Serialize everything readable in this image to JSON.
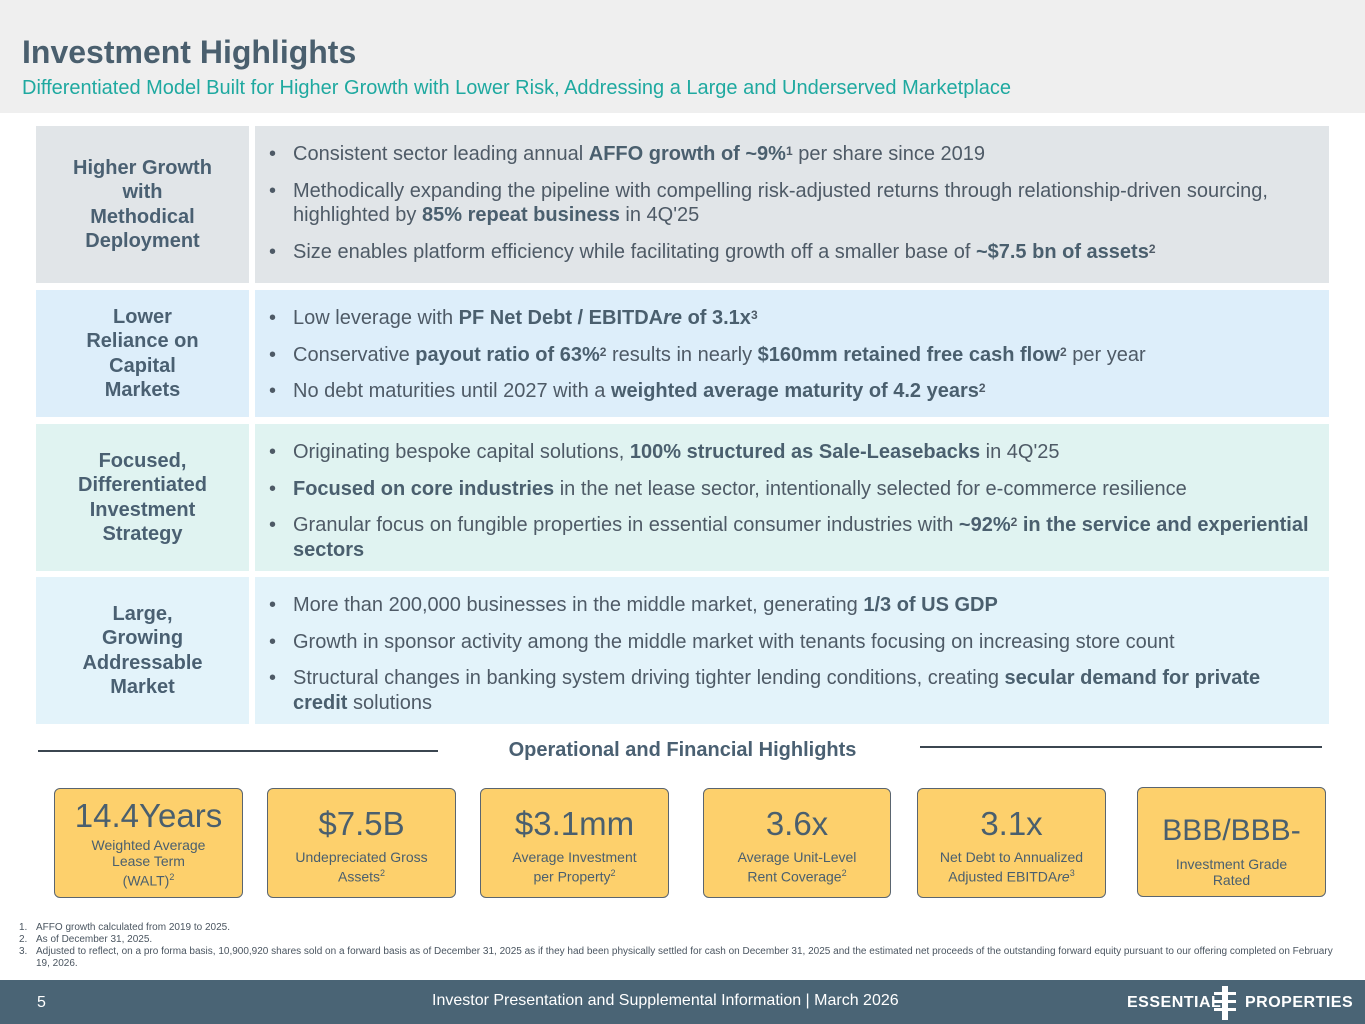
{
  "header": {
    "title": "Investment Highlights",
    "subtitle": "Differentiated Model Built for Higher Growth with Lower Risk, Addressing a Large and Underserved Marketplace"
  },
  "rows": [
    {
      "label": "Higher Growth\nwith\nMethodical\nDeployment",
      "bullets": [
        [
          {
            "t": "Consistent sector leading annual "
          },
          {
            "t": "AFFO growth of ~9%",
            "b": 1
          },
          {
            "t": "1",
            "sup": 1
          },
          {
            "t": "  per share since 2019"
          }
        ],
        [
          {
            "t": "Methodically expanding the pipeline with compelling risk-adjusted returns through relationship-driven sourcing, highlighted by "
          },
          {
            "t": "85% repeat business",
            "b": 1
          },
          {
            "t": " in 4Q'25"
          }
        ],
        [
          {
            "t": "Size enables platform efficiency while facilitating growth off a smaller base of "
          },
          {
            "t": "~$7.5 bn of assets",
            "b": 1
          },
          {
            "t": "2",
            "sup": 1
          }
        ]
      ]
    },
    {
      "label": "Lower\nReliance on\nCapital\nMarkets",
      "bullets": [
        [
          {
            "t": "Low leverage with "
          },
          {
            "t": "PF Net Debt / EBITDA",
            "b": 1
          },
          {
            "t": "re",
            "b": 1,
            "i": 1
          },
          {
            "t": " of 3.1x",
            "b": 1
          },
          {
            "t": "3",
            "sup": 1
          }
        ],
        [
          {
            "t": "Conservative "
          },
          {
            "t": "payout ratio of 63%",
            "b": 1
          },
          {
            "t": "2",
            "sup": 1
          },
          {
            "t": " results in nearly "
          },
          {
            "t": "$160mm retained free cash flow",
            "b": 1
          },
          {
            "t": "2",
            "sup": 1
          },
          {
            "t": " per year"
          }
        ],
        [
          {
            "t": "No debt maturities until 2027 with a "
          },
          {
            "t": "weighted average maturity of 4.2 years",
            "b": 1
          },
          {
            "t": "2",
            "sup": 1
          }
        ]
      ]
    },
    {
      "label": "Focused,\nDifferentiated\nInvestment\nStrategy",
      "bullets": [
        [
          {
            "t": "Originating bespoke capital solutions, "
          },
          {
            "t": "100% structured as Sale-Leasebacks",
            "b": 1
          },
          {
            "t": " in 4Q'25"
          }
        ],
        [
          {
            "t": "Focused on core industries",
            "b": 1
          },
          {
            "t": " in the net lease sector, intentionally selected for e-commerce resilience"
          }
        ],
        [
          {
            "t": "Granular focus on fungible properties in essential consumer industries with "
          },
          {
            "t": "~92%",
            "b": 1
          },
          {
            "t": "2",
            "sup": 1
          },
          {
            "t": " in the service and experiential sectors",
            "b": 1
          }
        ]
      ]
    },
    {
      "label": "Large,\nGrowing\nAddressable\nMarket",
      "bullets": [
        [
          {
            "t": "More than 200,000 businesses in the middle market, generating "
          },
          {
            "t": "1/3 of US GDP",
            "b": 1
          }
        ],
        [
          {
            "t": "Growth in sponsor activity among the middle market with tenants focusing on increasing store count"
          }
        ],
        [
          {
            "t": "Structural changes in banking system driving tighter lending conditions, creating "
          },
          {
            "t": "secular demand for private credit",
            "b": 1
          },
          {
            "t": " solutions"
          }
        ]
      ]
    }
  ],
  "ops": {
    "title": "Operational and Financial Highlights",
    "kpis": [
      {
        "value": "14.4Years",
        "caption": "Weighted Average\nLease Term\n(WALT)",
        "sup": "2"
      },
      {
        "value": "$7.5B",
        "caption": "Undepreciated Gross\nAssets",
        "sup": "2"
      },
      {
        "value": "$3.1mm",
        "caption": "Average Investment\nper Property",
        "sup": "2"
      },
      {
        "value": "3.6x",
        "caption": "Average Unit-Level\nRent Coverage",
        "sup": "2"
      },
      {
        "value": "3.1x",
        "caption": "Net Debt to Annualized\nAdjusted EBITDA",
        "caption_italic": "re",
        "sup": "3"
      },
      {
        "value": "BBB/BBB-",
        "caption": "Investment Grade\nRated",
        "sup": ""
      }
    ]
  },
  "footnotes": [
    {
      "n": "1.",
      "text": "AFFO growth calculated from 2019 to 2025."
    },
    {
      "n": "2.",
      "text": "As of December 31, 2025."
    },
    {
      "n": "3.",
      "text": "Adjusted to reflect, on a pro forma basis, 10,900,920 shares sold on a forward basis as of December 31, 2025 as if they had been physically settled for cash on December 31, 2025 and the estimated net proceeds of the outstanding forward equity pursuant to our offering completed on February 19, 2026."
    }
  ],
  "footer": {
    "page": "5",
    "presentation": "Investor Presentation and Supplemental Information |  March 2026",
    "logo_left": "ESSENTIAL",
    "logo_right": "PROPERTIES"
  },
  "bullet_char": "•"
}
